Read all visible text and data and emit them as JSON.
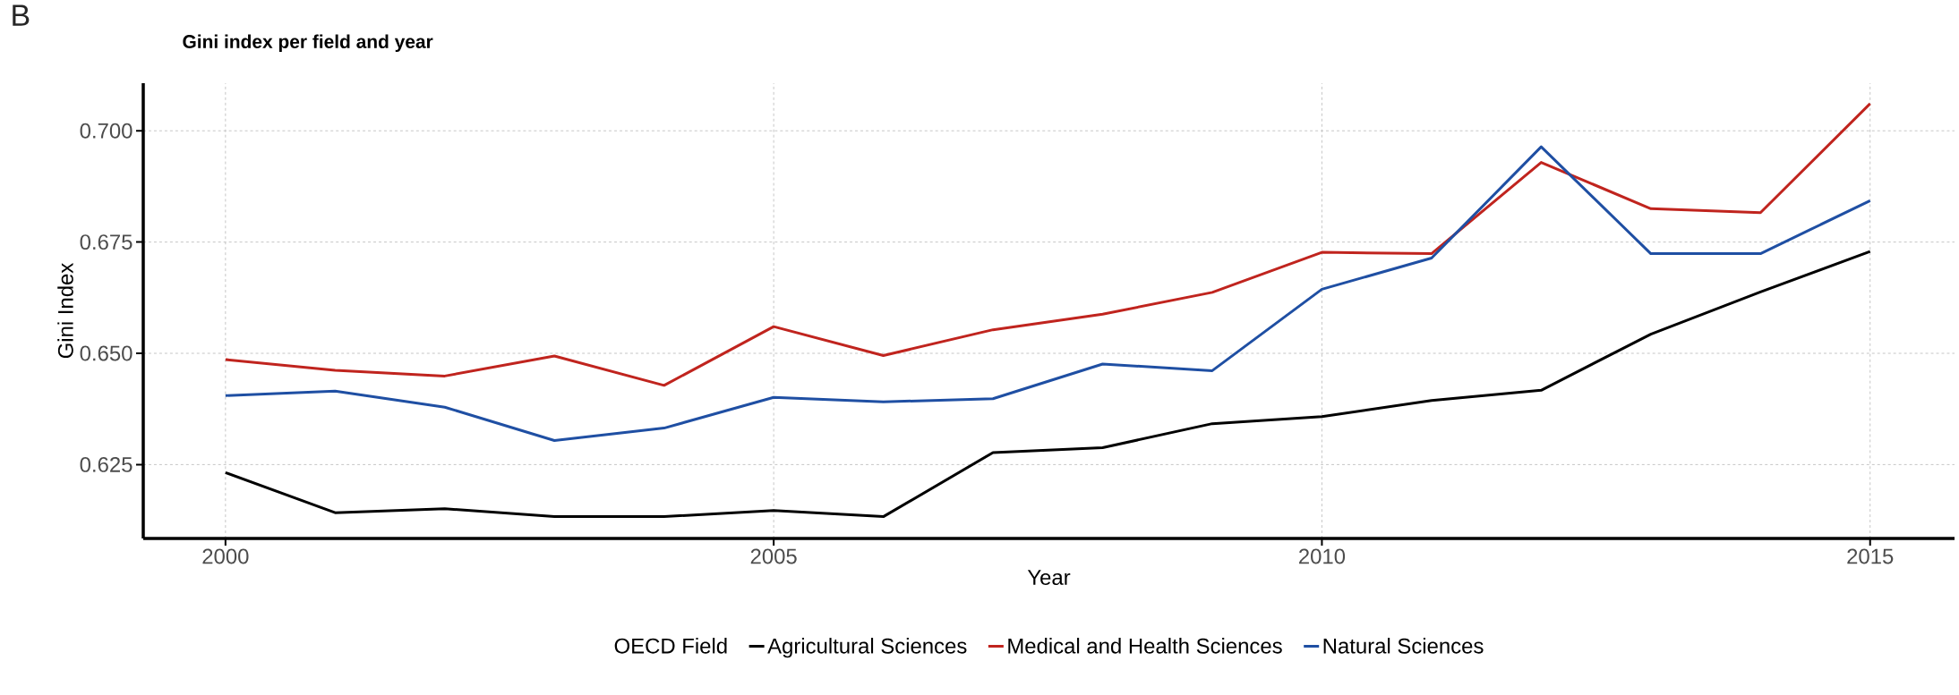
{
  "chart_data": {
    "type": "line",
    "title": "Gini index per field and year",
    "xlabel": "Year",
    "ylabel": "Gini Index",
    "legend_title": "OECD Field",
    "annotations": [
      "B"
    ],
    "x": [
      2000,
      2001,
      2002,
      2003,
      2004,
      2005,
      2006,
      2007,
      2008,
      2009,
      2010,
      2011,
      2012,
      2013,
      2014,
      2015
    ],
    "series": [
      {
        "name": "Agricultural Sciences",
        "color": "#000000",
        "values": [
          0.6232,
          0.6142,
          0.6151,
          0.6133,
          0.6133,
          0.6147,
          0.6133,
          0.6277,
          0.6288,
          0.6342,
          0.6358,
          0.6394,
          0.6417,
          0.6543,
          0.6638,
          0.6729
        ]
      },
      {
        "name": "Medical and Health Sciences",
        "color": "#c0241e",
        "values": [
          0.6486,
          0.6462,
          0.6449,
          0.6494,
          0.6428,
          0.656,
          0.6495,
          0.6553,
          0.6588,
          0.6637,
          0.6727,
          0.6724,
          0.6929,
          0.6825,
          0.6816,
          0.7061
        ]
      },
      {
        "name": "Natural Sciences",
        "color": "#1f4fa3",
        "values": [
          0.6405,
          0.6415,
          0.6379,
          0.6304,
          0.6332,
          0.6401,
          0.6391,
          0.6398,
          0.6476,
          0.6461,
          0.6644,
          0.6714,
          0.6964,
          0.6724,
          0.6724,
          0.6843
        ]
      }
    ],
    "xlim": [
      1999.25,
      2015.77
    ],
    "ylim": [
      0.6084,
      0.7107
    ],
    "xticks": [
      2000,
      2005,
      2010,
      2015
    ],
    "yticks": [
      {
        "value": 0.625,
        "label": "0.625"
      },
      {
        "value": 0.65,
        "label": "0.650"
      },
      {
        "value": 0.675,
        "label": "0.675"
      },
      {
        "value": 0.7,
        "label": "0.700"
      }
    ],
    "grid": true,
    "legend": "bottom",
    "line_style": "solid",
    "marker": "none"
  }
}
